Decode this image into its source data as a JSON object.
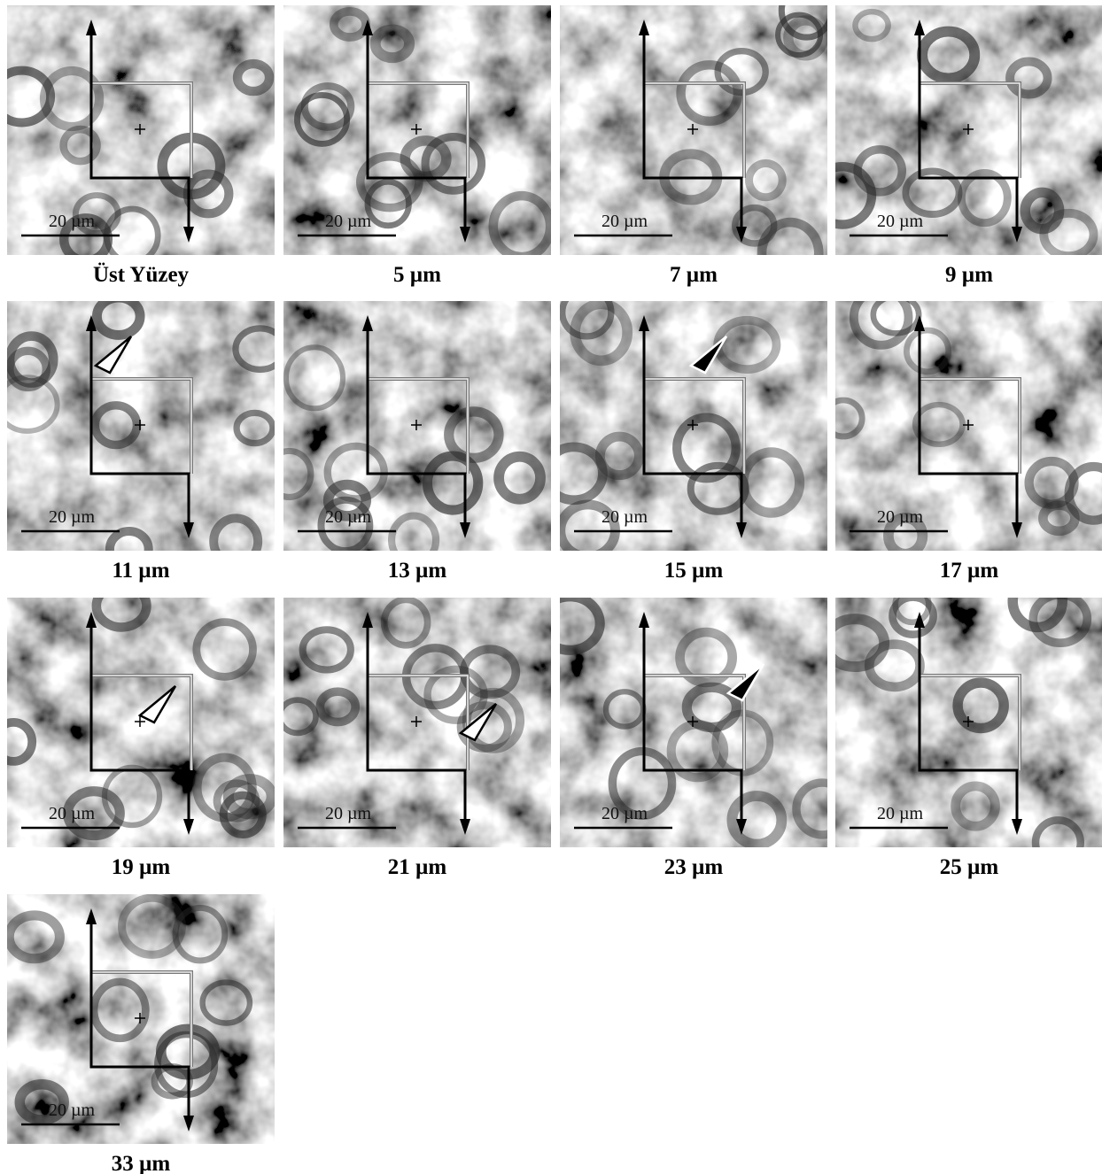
{
  "panels": [
    {
      "caption": "Üst Yüzey",
      "scale": "20 µm"
    },
    {
      "caption": "5 µm",
      "scale": "20 µm"
    },
    {
      "caption": "7 µm",
      "scale": "20 µm"
    },
    {
      "caption": "9 µm",
      "scale": "20 µm"
    },
    {
      "caption": "11 µm",
      "scale": "20 µm"
    },
    {
      "caption": "13 µm",
      "scale": "20 µm"
    },
    {
      "caption": "15 µm",
      "scale": "20 µm"
    },
    {
      "caption": "17 µm",
      "scale": "20 µm"
    },
    {
      "caption": "19 µm",
      "scale": "20 µm"
    },
    {
      "caption": "21 µm",
      "scale": "20 µm"
    },
    {
      "caption": "23 µm",
      "scale": "20 µm"
    },
    {
      "caption": "25 µm",
      "scale": "20 µm"
    },
    {
      "caption": "33 µm",
      "scale": "20 µm"
    }
  ]
}
